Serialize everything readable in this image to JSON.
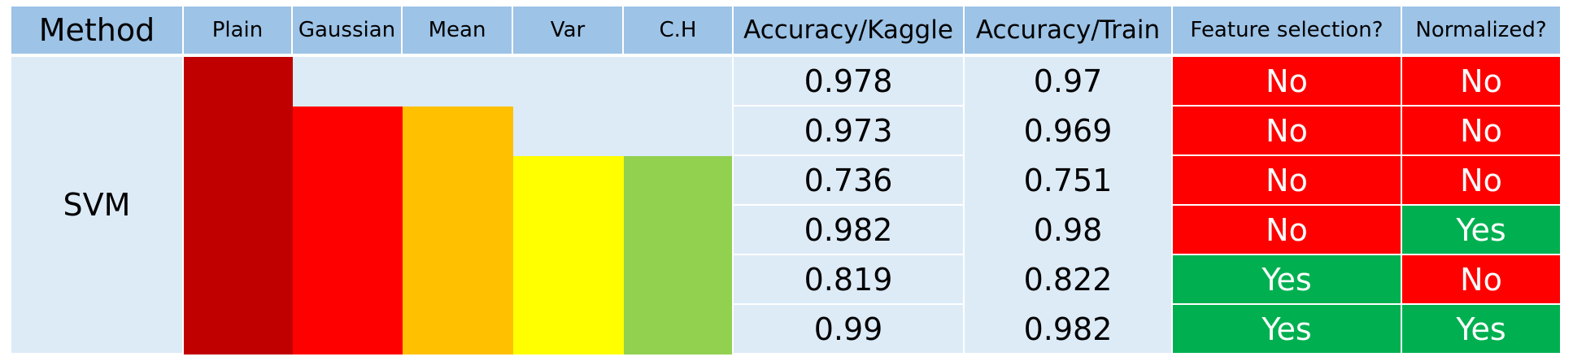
{
  "headers": {
    "method": "Method",
    "plain": "Plain",
    "gaussian": "Gaussian",
    "mean": "Mean",
    "var": "Var",
    "ch": "C.H",
    "acc_kaggle": "Accuracy/Kaggle",
    "acc_train": "Accuracy/Train",
    "feature_selection": "Feature selection?",
    "normalized": "Normalized?"
  },
  "method_label": "SVM",
  "colors": {
    "header_bg": "#9dc3e6",
    "body_bg": "#ddebf7",
    "plain": "#c00000",
    "gaussian": "#ff0000",
    "mean": "#ffc000",
    "var": "#ffff00",
    "ch": "#92d050",
    "yes": "#00b050",
    "no": "#ff0000"
  },
  "rows": [
    {
      "features": [
        "plain"
      ],
      "acc_kaggle": "0.978",
      "acc_train": "0.97",
      "feature_selection": "No",
      "normalized": "No"
    },
    {
      "features": [
        "plain",
        "gaussian",
        "mean"
      ],
      "acc_kaggle": "0.973",
      "acc_train": "0.969",
      "feature_selection": "No",
      "normalized": "No"
    },
    {
      "features": [
        "plain",
        "gaussian",
        "mean",
        "var",
        "ch"
      ],
      "acc_kaggle": "0.736",
      "acc_train": "0.751",
      "feature_selection": "No",
      "normalized": "No"
    },
    {
      "features": [
        "plain",
        "gaussian",
        "mean",
        "var",
        "ch"
      ],
      "acc_kaggle": "0.982",
      "acc_train": "0.98",
      "feature_selection": "No",
      "normalized": "Yes"
    },
    {
      "features": [
        "plain",
        "gaussian",
        "mean",
        "var",
        "ch"
      ],
      "acc_kaggle": "0.819",
      "acc_train": "0.822",
      "feature_selection": "Yes",
      "normalized": "No"
    },
    {
      "features": [
        "plain",
        "gaussian",
        "mean",
        "var",
        "ch"
      ],
      "acc_kaggle": "0.99",
      "acc_train": "0.982",
      "feature_selection": "Yes",
      "normalized": "Yes"
    }
  ]
}
